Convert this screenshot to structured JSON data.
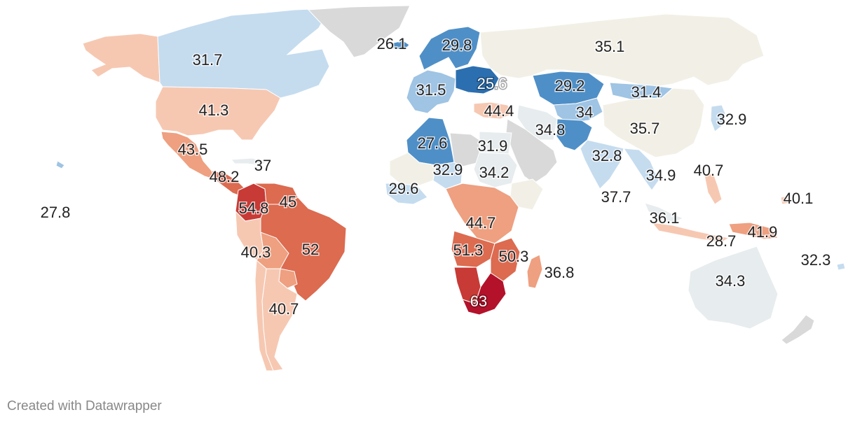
{
  "footer": {
    "credit": "Created with Datawrapper"
  },
  "colors": {
    "no_data": "#d9d9d9",
    "scale": [
      "#2c6fb0",
      "#4f8fc7",
      "#9fc4e4",
      "#c5dcef",
      "#e7ecee",
      "#f2f0e6",
      "#f6c8b2",
      "#eea080",
      "#dc6b50",
      "#c83a35",
      "#b3122a"
    ]
  },
  "regions": [
    {
      "name": "Alaska",
      "value": "",
      "color": "#f6c8b2"
    },
    {
      "name": "Canada",
      "value": "31.7",
      "color": "#c5dcef"
    },
    {
      "name": "Greenland",
      "value": "",
      "color": "#d9d9d9"
    },
    {
      "name": "Iceland",
      "value": "26.1",
      "color": "#4f8fc7"
    },
    {
      "name": "United States",
      "value": "41.3",
      "color": "#f6c8b2"
    },
    {
      "name": "Mexico",
      "value": "43.5",
      "color": "#eea080"
    },
    {
      "name": "Caribbean",
      "value": "37",
      "color": "#e7ecee"
    },
    {
      "name": "Central America",
      "value": "48.2",
      "color": "#dc6b50"
    },
    {
      "name": "Hawaii",
      "value": "27.8",
      "color": "#9fc4e4"
    },
    {
      "name": "Colombia",
      "value": "54.8",
      "color": "#c83a35"
    },
    {
      "name": "Venezuela",
      "value": "45",
      "color": "#dc6b50"
    },
    {
      "name": "Brazil",
      "value": "52",
      "color": "#dc6b50"
    },
    {
      "name": "Peru",
      "value": "40.3",
      "color": "#f6c8b2"
    },
    {
      "name": "Bolivia",
      "value": "",
      "color": "#eea080"
    },
    {
      "name": "Paraguay",
      "value": "",
      "color": "#eea080"
    },
    {
      "name": "Argentina",
      "value": "40.7",
      "color": "#f6c8b2"
    },
    {
      "name": "Chile",
      "value": "",
      "color": "#f6c8b2"
    },
    {
      "name": "Scandinavia",
      "value": "29.8",
      "color": "#4f8fc7"
    },
    {
      "name": "Russia",
      "value": "35.1",
      "color": "#f2f0e6"
    },
    {
      "name": "Western Europe",
      "value": "31.5",
      "color": "#9fc4e4"
    },
    {
      "name": "Central Europe",
      "value": "25.6",
      "color": "#2c6fb0"
    },
    {
      "name": "Turkey",
      "value": "44.4",
      "color": "#f6c8b2"
    },
    {
      "name": "Kazakhstan",
      "value": "29.2",
      "color": "#4f8fc7"
    },
    {
      "name": "Mongolia",
      "value": "31.4",
      "color": "#9fc4e4"
    },
    {
      "name": "Central Asia",
      "value": "34",
      "color": "#9fc4e4"
    },
    {
      "name": "China",
      "value": "35.7",
      "color": "#f2f0e6"
    },
    {
      "name": "Japan",
      "value": "32.9",
      "color": "#c5dcef"
    },
    {
      "name": "Iran",
      "value": "34.8",
      "color": "#e7ecee"
    },
    {
      "name": "Pakistan",
      "value": "",
      "color": "#4f8fc7"
    },
    {
      "name": "India",
      "value": "32.8",
      "color": "#c5dcef"
    },
    {
      "name": "Bangladesh",
      "value": "34.9",
      "color": "#c5dcef"
    },
    {
      "name": "Sri Lanka",
      "value": "37.7",
      "color": "#e7ecee"
    },
    {
      "name": "Philippines",
      "value": "40.7",
      "color": "#f6c8b2"
    },
    {
      "name": "Pacific",
      "value": "40.1",
      "color": "#f6c8b2"
    },
    {
      "name": "Malaysia",
      "value": "36.1",
      "color": "#e7ecee"
    },
    {
      "name": "Indonesia",
      "value": "28.7",
      "color": "#f6c8b2"
    },
    {
      "name": "Papua New Guinea",
      "value": "41.9",
      "color": "#eea080"
    },
    {
      "name": "Fiji",
      "value": "32.3",
      "color": "#c5dcef"
    },
    {
      "name": "Australia",
      "value": "34.3",
      "color": "#e7ecee"
    },
    {
      "name": "New Zealand",
      "value": "",
      "color": "#d9d9d9"
    },
    {
      "name": "Arabian Peninsula",
      "value": "",
      "color": "#d9d9d9"
    },
    {
      "name": "Algeria",
      "value": "27.6",
      "color": "#4f8fc7"
    },
    {
      "name": "Libya",
      "value": "",
      "color": "#d9d9d9"
    },
    {
      "name": "Egypt",
      "value": "31.9",
      "color": "#e7ecee"
    },
    {
      "name": "Mali",
      "value": "",
      "color": "#f2f0e6"
    },
    {
      "name": "Niger",
      "value": "32.9",
      "color": "#c5dcef"
    },
    {
      "name": "Sudan",
      "value": "34.2",
      "color": "#e7ecee"
    },
    {
      "name": "West Africa",
      "value": "29.6",
      "color": "#c5dcef"
    },
    {
      "name": "Ethiopia",
      "value": "",
      "color": "#f2f0e6"
    },
    {
      "name": "Central Africa",
      "value": "44.7",
      "color": "#eea080"
    },
    {
      "name": "Angola",
      "value": "51.3",
      "color": "#dc6b50"
    },
    {
      "name": "Mozambique",
      "value": "50.3",
      "color": "#dc6b50"
    },
    {
      "name": "Namibia",
      "value": "",
      "color": "#c83a35"
    },
    {
      "name": "South Africa",
      "value": "63",
      "color": "#b3122a"
    },
    {
      "name": "Madagascar",
      "value": "36.8",
      "color": "#eea080"
    }
  ]
}
